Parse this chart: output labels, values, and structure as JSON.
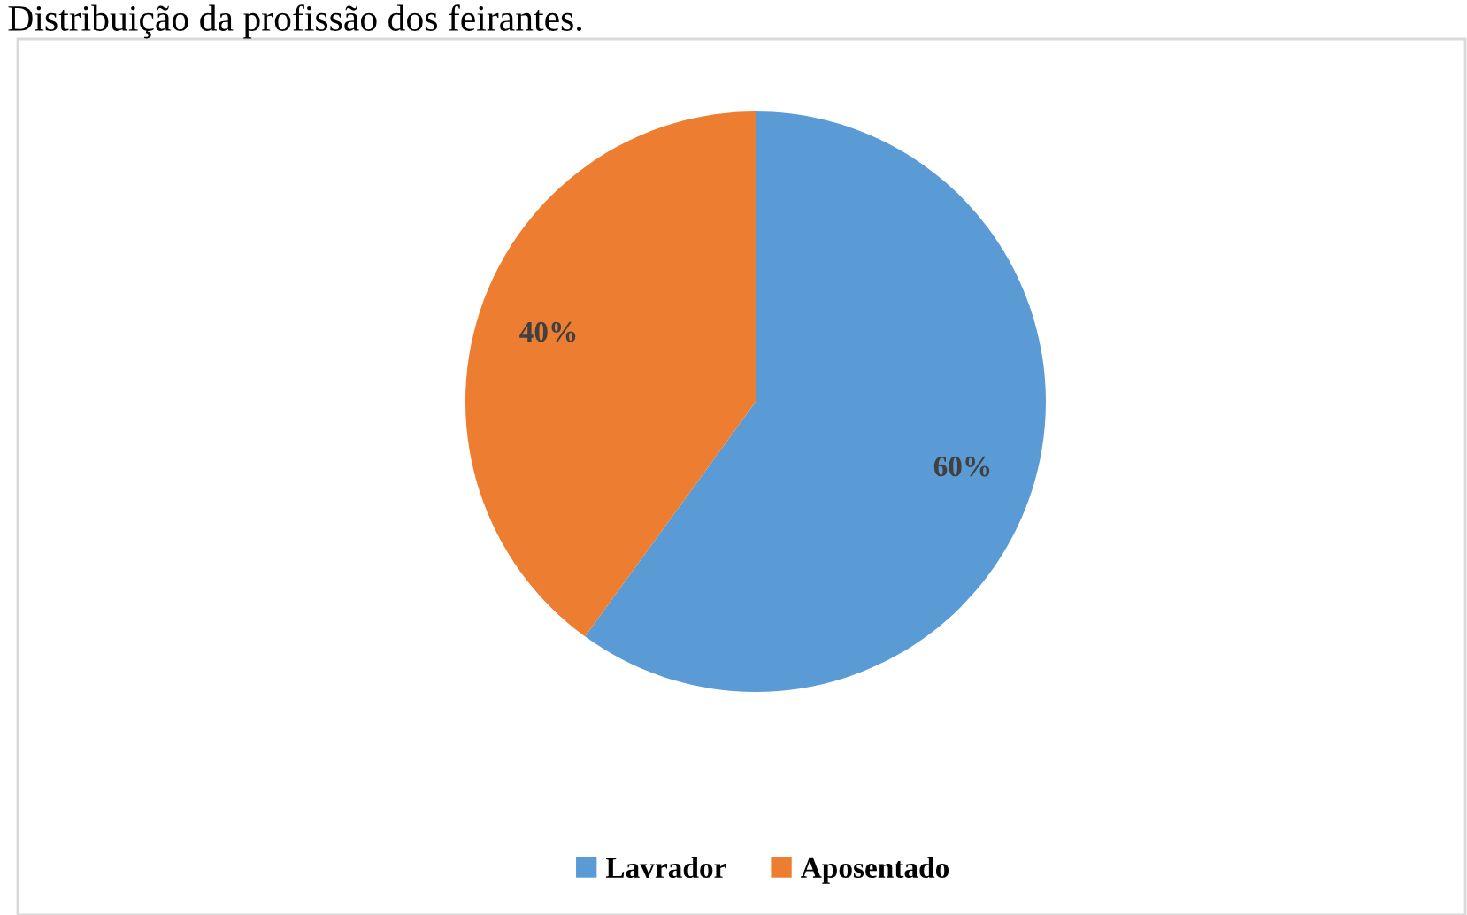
{
  "chart_data": {
    "type": "pie",
    "title": "Distribuição da profissão dos feirantes.",
    "categories": [
      "Lavrador",
      "Aposentado"
    ],
    "values": [
      60,
      40
    ],
    "colors": [
      "#5b9bd5",
      "#ed7d31"
    ],
    "value_labels": [
      "60%",
      "40%"
    ],
    "legend": "bottom"
  }
}
